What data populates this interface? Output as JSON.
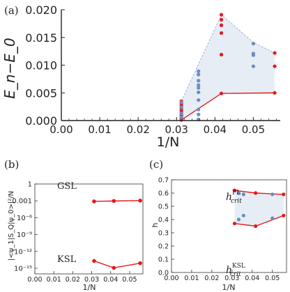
{
  "chart_data": [
    {
      "panel": "(a)",
      "type": "scatter",
      "xlabel": "1/N",
      "ylabel": "E_n−E_0",
      "xlim": [
        0.0,
        0.057
      ],
      "ylim": [
        0.0,
        0.02
      ],
      "xticks": [
        "0.00",
        "0.01",
        "0.02",
        "0.03",
        "0.04",
        "0.05"
      ],
      "yticks": [
        "0.000",
        "0.005",
        "0.010",
        "0.015",
        "0.020"
      ],
      "x_categories": [
        0.03125,
        0.03571,
        0.04167,
        0.05,
        0.05556
      ],
      "series": [
        {
          "color": "#d62728",
          "points": [
            [
              0.03125,
              0.0001
            ],
            [
              0.03125,
              0.0004
            ],
            [
              0.03125,
              0.0007
            ],
            [
              0.03125,
              0.001
            ],
            [
              0.03125,
              0.0014
            ],
            [
              0.03125,
              0.0018
            ],
            [
              0.03125,
              0.0022
            ],
            [
              0.03125,
              0.0027
            ],
            [
              0.03125,
              0.0031
            ],
            [
              0.03125,
              0.0035
            ],
            [
              0.04167,
              0.0049
            ],
            [
              0.04167,
              0.0119
            ],
            [
              0.04167,
              0.0158
            ],
            [
              0.04167,
              0.0172
            ],
            [
              0.04167,
              0.0182
            ],
            [
              0.04167,
              0.0191
            ],
            [
              0.05556,
              0.005
            ],
            [
              0.05556,
              0.0098
            ],
            [
              0.05556,
              0.0122
            ]
          ]
        },
        {
          "color": "#6c8ebf",
          "points": [
            [
              0.03125,
              0.0006
            ],
            [
              0.03125,
              0.0013
            ],
            [
              0.03125,
              0.0024
            ],
            [
              0.03125,
              0.0033
            ],
            [
              0.03571,
              0.0002
            ],
            [
              0.03571,
              0.0011
            ],
            [
              0.03571,
              0.002
            ],
            [
              0.03571,
              0.0037
            ],
            [
              0.03571,
              0.0051
            ],
            [
              0.03571,
              0.0059
            ],
            [
              0.03571,
              0.0064
            ],
            [
              0.03571,
              0.0072
            ],
            [
              0.03571,
              0.0083
            ],
            [
              0.03571,
              0.0089
            ],
            [
              0.05,
              0.0098
            ],
            [
              0.05,
              0.0118
            ],
            [
              0.05,
              0.0121
            ],
            [
              0.05,
              0.0139
            ]
          ]
        }
      ],
      "lower_line": [
        [
          0.03125,
          0.0001
        ],
        [
          0.04167,
          0.0049
        ],
        [
          0.05556,
          0.005
        ]
      ],
      "upper_envelope": [
        [
          0.03125,
          0.0035
        ],
        [
          0.04167,
          0.0191
        ],
        [
          0.05,
          0.0141
        ],
        [
          0.05556,
          0.0122
        ]
      ],
      "shade_color": "#e6edf5",
      "grid": false
    },
    {
      "panel": "(b)",
      "type": "line",
      "xlabel": "1/N",
      "ylabel": "|<ψ_1|S_Q|ψ_0>|²/N",
      "xlim": [
        0.0,
        0.057
      ],
      "ylog": true,
      "ylim_exp": [
        -16,
        0
      ],
      "xticks": [
        "0.00",
        "0.01",
        "0.02",
        "0.03",
        "0.04",
        "0.05"
      ],
      "yticks": [
        "1",
        "0.001",
        "10⁻⁶",
        "10⁻⁹",
        "10⁻¹²",
        "10⁻¹⁵"
      ],
      "ytick_exp": [
        0,
        -3,
        -6,
        -9,
        -12,
        -15
      ],
      "series": [
        {
          "name": "GSL",
          "color": "#d62728",
          "points": [
            [
              0.03125,
              0.0008
            ],
            [
              0.04167,
              0.00095
            ],
            [
              0.05556,
              0.0011
            ]
          ]
        },
        {
          "name": "KSL",
          "color": "#d62728",
          "points": [
            [
              0.03125,
              2e-14
            ],
            [
              0.04167,
              1.2e-15
            ],
            [
              0.05556,
              8e-15
            ]
          ]
        }
      ],
      "grid": false
    },
    {
      "panel": "(c)",
      "type": "scatter",
      "xlabel": "1/N",
      "ylabel": "h",
      "xlim": [
        0.0,
        0.057
      ],
      "ylim": [
        0.0,
        0.7
      ],
      "xticks": [
        "0.00",
        "0.01",
        "0.02",
        "0.03",
        "0.04",
        "0.05"
      ],
      "yticks": [
        "0.0",
        "0.1",
        "0.2",
        "0.3",
        "0.4",
        "0.5",
        "0.6",
        "0.7"
      ],
      "series": [
        {
          "name": "h_crit^PL",
          "color": "#d62728",
          "points": [
            [
              0.03125,
              0.62
            ],
            [
              0.04167,
              0.6
            ],
            [
              0.05556,
              0.59
            ]
          ]
        },
        {
          "name": "h_crit^KSL",
          "color": "#d62728",
          "points": [
            [
              0.03125,
              0.37
            ],
            [
              0.04167,
              0.35
            ],
            [
              0.05556,
              0.43
            ]
          ]
        },
        {
          "color": "#6c8ebf",
          "points": [
            [
              0.03333,
              0.6
            ],
            [
              0.03571,
              0.59
            ],
            [
              0.05,
              0.59
            ],
            [
              0.03333,
              0.4
            ],
            [
              0.03571,
              0.43
            ],
            [
              0.05,
              0.41
            ]
          ]
        }
      ],
      "shade_color": "#e6edf5",
      "grid": false
    }
  ],
  "labels": {
    "a": "(a)",
    "b": "(b)",
    "c": "(c)",
    "gsl": "GSL",
    "ksl": "KSL",
    "h_pl_base": "h",
    "h_pl_sup": "PL",
    "h_pl_sub": "crit",
    "h_ksl_base": "h",
    "h_ksl_sup": "KSL",
    "h_ksl_sub": "crit"
  }
}
